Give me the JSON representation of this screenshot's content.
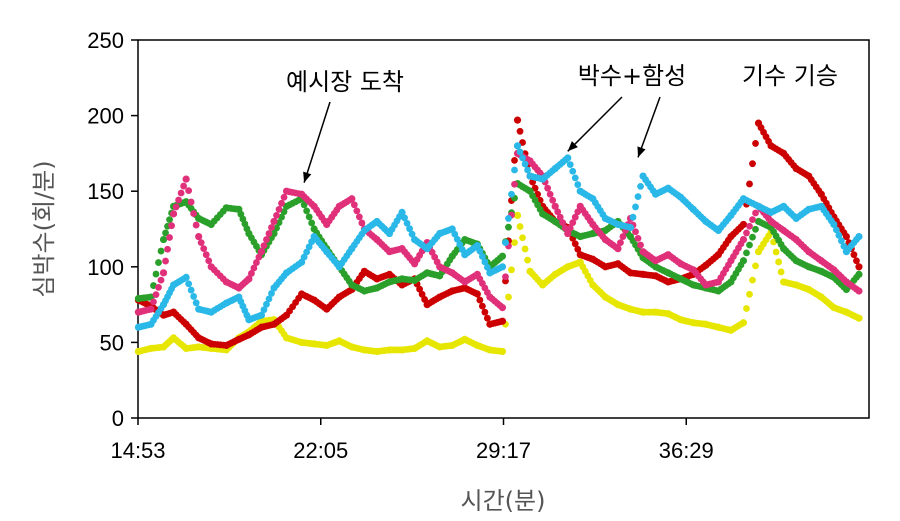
{
  "chart_data": {
    "type": "scatter",
    "title": "",
    "xlabel": "시간(분)",
    "ylabel": "심박수(회/분)",
    "x_ticks": [
      "14:53",
      "22:05",
      "29:17",
      "36:29"
    ],
    "x_range_min": [
      14.883,
      44.0
    ],
    "ylim": [
      0,
      250
    ],
    "y_ticks": [
      0,
      50,
      100,
      150,
      200,
      250
    ],
    "grid": false,
    "legend": "none",
    "annotations": [
      {
        "text": "예시장 도착",
        "x_min": 21.5,
        "y": 157
      },
      {
        "text": "박수+함성",
        "x_min": [
          32.0,
          34.8
        ],
        "y": [
          183,
          175
        ]
      },
      {
        "text": "기수 기승",
        "x_min": 40.0,
        "y": 212
      }
    ],
    "series": [
      {
        "color": "#e6e600",
        "x_min": [
          14.9,
          15.4,
          15.9,
          16.3,
          16.8,
          17.3,
          17.8,
          18.4,
          18.9,
          19.3,
          19.8,
          20.3,
          20.8,
          21.4,
          21.9,
          22.4,
          22.9,
          23.4,
          23.9,
          24.4,
          24.9,
          25.4,
          25.9,
          26.4,
          26.9,
          27.4,
          27.9,
          28.4,
          28.9,
          29.4,
          30.0,
          30.5,
          31.0,
          31.5,
          32.0,
          32.5,
          33.0,
          33.5,
          34.0,
          34.5,
          35.0,
          35.5,
          36.0,
          36.5,
          37.0,
          37.5,
          38.0,
          38.5,
          39.0,
          39.6,
          40.1,
          40.6,
          41.1,
          41.6,
          42.1,
          42.6,
          43.1,
          43.6
        ],
        "values": [
          44,
          46,
          47,
          53,
          46,
          47,
          46,
          45,
          53,
          57,
          64,
          65,
          53,
          50,
          49,
          48,
          51,
          47,
          45,
          44,
          45,
          45,
          46,
          51,
          47,
          48,
          52,
          48,
          45,
          44,
          134,
          97,
          88,
          95,
          100,
          103,
          88,
          80,
          75,
          72,
          70,
          70,
          69,
          65,
          63,
          62,
          60,
          58,
          63,
          110,
          123,
          90,
          88,
          85,
          80,
          73,
          70,
          66
        ]
      },
      {
        "color": "#cc0000",
        "x_min": [
          14.9,
          15.4,
          15.9,
          16.3,
          16.8,
          17.3,
          17.8,
          18.4,
          18.9,
          19.3,
          19.8,
          20.3,
          20.8,
          21.4,
          21.9,
          22.4,
          22.9,
          23.4,
          23.9,
          24.4,
          24.9,
          25.4,
          25.9,
          26.4,
          26.9,
          27.4,
          27.9,
          28.4,
          28.9,
          29.4,
          30.0,
          30.5,
          31.0,
          31.5,
          32.0,
          32.5,
          33.0,
          33.5,
          34.0,
          34.5,
          35.0,
          35.5,
          36.0,
          36.5,
          37.0,
          37.5,
          38.0,
          38.5,
          39.0,
          39.6,
          40.1,
          40.6,
          41.1,
          41.6,
          42.1,
          42.6,
          43.1,
          43.6
        ],
        "values": [
          78,
          74,
          68,
          70,
          62,
          53,
          49,
          48,
          52,
          55,
          60,
          62,
          68,
          82,
          78,
          72,
          80,
          85,
          97,
          92,
          95,
          88,
          92,
          75,
          80,
          84,
          86,
          82,
          62,
          64,
          197,
          160,
          140,
          130,
          126,
          108,
          105,
          100,
          102,
          96,
          95,
          94,
          90,
          92,
          95,
          101,
          108,
          120,
          128,
          195,
          180,
          175,
          165,
          160,
          148,
          133,
          120,
          100
        ]
      },
      {
        "color": "#2aa02a",
        "x_min": [
          14.9,
          15.4,
          15.9,
          16.3,
          16.8,
          17.3,
          17.8,
          18.4,
          18.9,
          19.3,
          19.8,
          20.3,
          20.8,
          21.4,
          21.9,
          22.4,
          22.9,
          23.4,
          23.9,
          24.4,
          24.9,
          25.4,
          25.9,
          26.4,
          26.9,
          27.4,
          27.9,
          28.4,
          28.9,
          29.4,
          30.0,
          30.5,
          31.0,
          31.5,
          32.0,
          32.5,
          33.0,
          33.5,
          34.0,
          34.5,
          35.0,
          35.5,
          36.0,
          36.5,
          37.0,
          37.5,
          38.0,
          38.5,
          39.0,
          39.6,
          40.1,
          40.6,
          41.1,
          41.6,
          42.1,
          42.6,
          43.1,
          43.6
        ],
        "values": [
          79,
          80,
          118,
          140,
          143,
          132,
          128,
          139,
          138,
          122,
          108,
          122,
          140,
          145,
          125,
          112,
          100,
          88,
          84,
          86,
          90,
          92,
          91,
          96,
          94,
          107,
          118,
          115,
          100,
          107,
          155,
          150,
          135,
          130,
          124,
          120,
          122,
          124,
          130,
          120,
          106,
          100,
          96,
          92,
          88,
          86,
          84,
          90,
          104,
          130,
          126,
          112,
          104,
          100,
          97,
          93,
          85,
          95
        ]
      },
      {
        "color": "#e0307a",
        "x_min": [
          14.9,
          15.4,
          15.9,
          16.3,
          16.8,
          17.3,
          17.8,
          18.4,
          18.9,
          19.3,
          19.8,
          20.3,
          20.8,
          21.4,
          21.9,
          22.4,
          22.9,
          23.4,
          23.9,
          24.4,
          24.9,
          25.4,
          25.9,
          26.4,
          26.9,
          27.4,
          27.9,
          28.4,
          28.9,
          29.4,
          30.0,
          30.5,
          31.0,
          31.5,
          32.0,
          32.5,
          33.0,
          33.5,
          34.0,
          34.5,
          35.0,
          35.5,
          36.0,
          36.5,
          37.0,
          37.5,
          38.0,
          38.5,
          39.0,
          39.6,
          40.1,
          40.6,
          41.1,
          41.6,
          42.1,
          42.6,
          43.1,
          43.6
        ],
        "values": [
          70,
          72,
          96,
          135,
          158,
          120,
          100,
          90,
          86,
          92,
          110,
          130,
          150,
          148,
          140,
          128,
          140,
          145,
          125,
          118,
          110,
          112,
          102,
          116,
          100,
          96,
          90,
          95,
          80,
          73,
          175,
          170,
          160,
          140,
          122,
          140,
          128,
          118,
          112,
          132,
          110,
          104,
          108,
          102,
          98,
          88,
          90,
          104,
          118,
          140,
          130,
          124,
          118,
          110,
          104,
          98,
          90,
          84
        ]
      },
      {
        "color": "#29b8e8",
        "x_min": [
          14.9,
          15.4,
          15.9,
          16.3,
          16.8,
          17.3,
          17.8,
          18.4,
          18.9,
          19.3,
          19.8,
          20.3,
          20.8,
          21.4,
          21.9,
          22.4,
          22.9,
          23.4,
          23.9,
          24.4,
          24.9,
          25.4,
          25.9,
          26.4,
          26.9,
          27.4,
          27.9,
          28.4,
          28.9,
          29.4,
          30.0,
          30.5,
          31.0,
          31.5,
          32.0,
          32.5,
          33.0,
          33.5,
          34.0,
          34.5,
          35.0,
          35.5,
          36.0,
          36.5,
          37.0,
          37.5,
          38.0,
          38.5,
          39.0,
          39.6,
          40.1,
          40.6,
          41.1,
          41.6,
          42.1,
          42.6,
          43.1,
          43.6
        ],
        "values": [
          60,
          62,
          75,
          88,
          93,
          72,
          70,
          76,
          80,
          65,
          68,
          86,
          96,
          103,
          120,
          110,
          100,
          112,
          124,
          130,
          122,
          136,
          118,
          112,
          122,
          125,
          108,
          114,
          96,
          100,
          180,
          160,
          158,
          165,
          172,
          150,
          145,
          132,
          128,
          126,
          160,
          148,
          152,
          146,
          138,
          130,
          124,
          134,
          145,
          140,
          136,
          140,
          132,
          138,
          140,
          128,
          110,
          120
        ]
      }
    ]
  }
}
